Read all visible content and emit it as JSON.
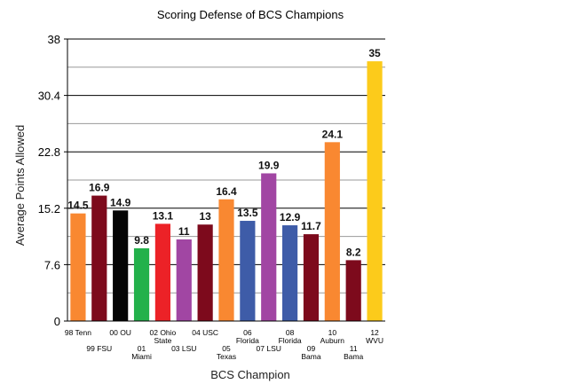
{
  "chart_data": {
    "type": "bar",
    "title": "Scoring Defense of BCS Champions",
    "xlabel": "BCS Champion",
    "ylabel": "Average Points Allowed",
    "ylim": [
      0,
      38
    ],
    "yticks": [
      "0",
      "7.6",
      "15.2",
      "22.8",
      "30.4",
      "38"
    ],
    "grid": true,
    "categories": [
      {
        "line1": "98 Tenn",
        "line2": ""
      },
      {
        "line1": "99 FSU",
        "line2": ""
      },
      {
        "line1": "00 OU",
        "line2": ""
      },
      {
        "line1": "01",
        "line2": "Miami"
      },
      {
        "line1": "02 Ohio",
        "line2": "State"
      },
      {
        "line1": "03 LSU",
        "line2": ""
      },
      {
        "line1": "04 USC",
        "line2": ""
      },
      {
        "line1": "05",
        "line2": "Texas"
      },
      {
        "line1": "06",
        "line2": "Florida"
      },
      {
        "line1": "07 LSU",
        "line2": ""
      },
      {
        "line1": "08",
        "line2": "Florida"
      },
      {
        "line1": "09",
        "line2": "Bama"
      },
      {
        "line1": "10",
        "line2": "Auburn"
      },
      {
        "line1": "11",
        "line2": "Bama"
      },
      {
        "line1": "12",
        "line2": "WVU"
      }
    ],
    "values": [
      14.5,
      16.9,
      14.9,
      9.8,
      13.1,
      11,
      13,
      16.4,
      13.5,
      19.9,
      12.9,
      11.7,
      24.1,
      8.2,
      35
    ],
    "value_labels": [
      "14.5",
      "16.9",
      "14.9",
      "9.8",
      "13.1",
      "11",
      "13",
      "16.4",
      "13.5",
      "19.9",
      "12.9",
      "11.7",
      "24.1",
      "8.2",
      "35"
    ],
    "colors": [
      "#F98831",
      "#7D0A1C",
      "#050505",
      "#23B14B",
      "#EC2227",
      "#A146A3",
      "#7D0A1C",
      "#F98831",
      "#3E5CA8",
      "#A146A3",
      "#3E5CA8",
      "#7D0A1C",
      "#F98831",
      "#7D0A1C",
      "#FCCB1B"
    ]
  }
}
